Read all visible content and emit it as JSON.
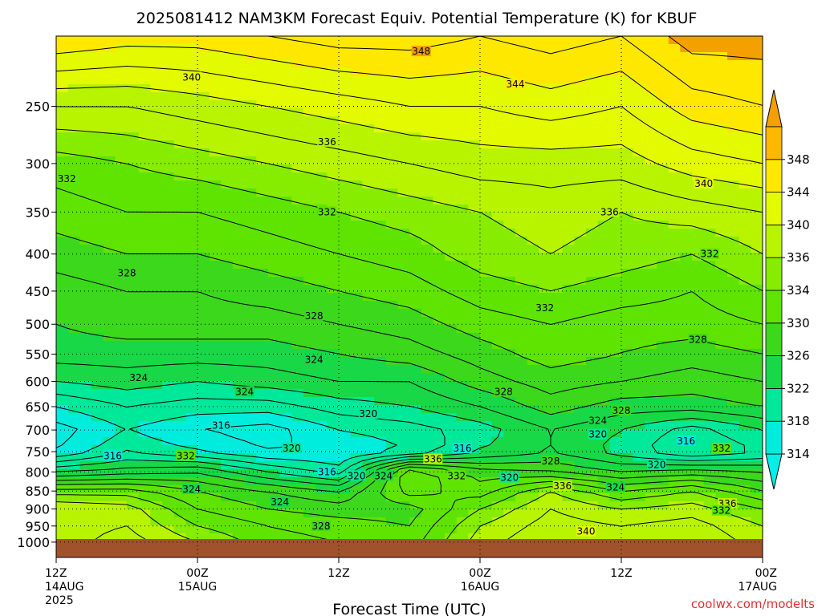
{
  "chart_data": {
    "type": "heatmap",
    "title": "2025081412 NAM3KM Forecast Equiv. Potential Temperature (K) for KBUF",
    "xlabel": "Forecast Time (UTC)",
    "ylabel": "",
    "y_log_scale": true,
    "y_inverted": true,
    "ylim": [
      1050,
      200
    ],
    "xlim_hours": [
      0,
      60
    ],
    "grid": "dotted",
    "y_ticks": [
      250,
      300,
      350,
      400,
      450,
      500,
      550,
      600,
      650,
      700,
      750,
      800,
      850,
      900,
      950,
      1000
    ],
    "x_ticks": [
      {
        "h": 0,
        "hour": "12Z",
        "date": "14AUG",
        "year": "2025"
      },
      {
        "h": 12,
        "hour": "00Z",
        "date": "15AUG",
        "year": ""
      },
      {
        "h": 24,
        "hour": "12Z",
        "date": "",
        "year": ""
      },
      {
        "h": 36,
        "hour": "00Z",
        "date": "16AUG",
        "year": ""
      },
      {
        "h": 48,
        "hour": "12Z",
        "date": "",
        "year": ""
      },
      {
        "h": 60,
        "hour": "00Z",
        "date": "17AUG",
        "year": ""
      }
    ],
    "colorbar": {
      "levels": [
        314,
        318,
        322,
        326,
        330,
        334,
        336,
        340,
        344,
        348
      ],
      "colors": [
        "#00ecdc",
        "#00e89a",
        "#18d848",
        "#3cd81c",
        "#5ee400",
        "#86ec00",
        "#b8f400",
        "#e4fa00",
        "#ffe800",
        "#ffb800"
      ],
      "low_color": "#00f0e8",
      "high_color": "#f4a000"
    },
    "profiles": [
      {
        "h": 0,
        "p": [
          1000,
          950,
          900,
          850,
          800,
          750,
          700,
          650,
          600,
          550,
          500,
          450,
          400,
          350,
          300,
          250,
          200
        ],
        "theta_e": [
          337,
          337,
          338,
          333,
          324,
          316,
          315,
          318,
          322,
          325,
          326,
          327,
          329,
          331,
          333,
          338,
          346
        ]
      },
      {
        "h": 6,
        "p": [
          1000,
          950,
          900,
          850,
          800,
          750,
          700,
          650,
          600,
          550,
          500,
          450,
          400,
          350,
          300,
          250,
          200
        ],
        "theta_e": [
          339,
          338,
          337,
          333,
          325,
          320,
          318,
          320,
          323,
          325,
          327,
          328,
          330,
          332,
          334,
          338,
          345
        ]
      },
      {
        "h": 12,
        "p": [
          1000,
          950,
          900,
          850,
          800,
          750,
          700,
          650,
          600,
          550,
          500,
          450,
          400,
          350,
          300,
          250,
          200
        ],
        "theta_e": [
          336,
          334,
          332,
          330,
          326,
          318,
          316,
          319,
          322,
          325,
          327,
          328,
          330,
          332,
          335,
          339,
          345
        ]
      },
      {
        "h": 18,
        "p": [
          1000,
          950,
          900,
          850,
          800,
          750,
          700,
          650,
          600,
          550,
          500,
          450,
          400,
          350,
          300,
          250,
          200
        ],
        "theta_e": [
          333,
          332,
          330,
          328,
          322,
          316,
          315,
          319,
          323,
          325,
          327,
          329,
          331,
          333,
          336,
          340,
          346
        ]
      },
      {
        "h": 24,
        "p": [
          1000,
          950,
          900,
          850,
          800,
          750,
          700,
          650,
          600,
          550,
          500,
          450,
          400,
          350,
          300,
          250,
          200
        ],
        "theta_e": [
          332,
          331,
          329,
          326,
          319,
          316,
          318,
          321,
          324,
          326,
          328,
          330,
          332,
          334,
          337,
          341,
          347
        ]
      },
      {
        "h": 30,
        "p": [
          1000,
          950,
          900,
          850,
          800,
          750,
          700,
          650,
          600,
          550,
          500,
          450,
          400,
          350,
          300,
          250,
          200
        ],
        "theta_e": [
          331,
          330,
          329,
          333,
          334,
          318,
          319,
          322,
          324,
          327,
          329,
          331,
          333,
          335,
          338,
          342,
          347
        ]
      },
      {
        "h": 36,
        "p": [
          1000,
          950,
          900,
          850,
          800,
          750,
          700,
          650,
          600,
          550,
          500,
          450,
          400,
          350,
          300,
          250,
          200
        ],
        "theta_e": [
          337,
          336,
          334,
          331,
          329,
          322,
          321,
          324,
          327,
          329,
          331,
          333,
          335,
          336,
          339,
          342,
          346
        ]
      },
      {
        "h": 42,
        "p": [
          1000,
          950,
          900,
          850,
          800,
          750,
          700,
          650,
          600,
          550,
          500,
          450,
          400,
          350,
          300,
          250,
          200
        ],
        "theta_e": [
          340,
          339,
          338,
          336,
          328,
          324,
          324,
          327,
          329,
          331,
          332,
          334,
          336,
          337,
          339,
          343,
          347
        ]
      },
      {
        "h": 48,
        "p": [
          1000,
          950,
          900,
          850,
          800,
          750,
          700,
          650,
          600,
          550,
          500,
          450,
          400,
          350,
          300,
          250,
          200
        ],
        "theta_e": [
          339,
          338,
          336,
          332,
          326,
          321,
          322,
          325,
          328,
          330,
          331,
          333,
          335,
          336,
          339,
          342,
          346
        ]
      },
      {
        "h": 54,
        "p": [
          1000,
          950,
          900,
          850,
          800,
          750,
          700,
          650,
          600,
          550,
          500,
          450,
          400,
          350,
          300,
          250,
          200
        ],
        "theta_e": [
          340,
          339,
          337,
          334,
          327,
          318,
          319,
          325,
          327,
          329,
          331,
          332,
          334,
          337,
          341,
          345,
          349
        ]
      },
      {
        "h": 60,
        "p": [
          1000,
          950,
          900,
          850,
          800,
          750,
          700,
          650,
          600,
          550,
          500,
          450,
          400,
          350,
          300,
          250,
          200
        ],
        "theta_e": [
          337,
          336,
          334,
          330,
          326,
          320,
          322,
          326,
          328,
          330,
          332,
          334,
          336,
          338,
          342,
          346,
          349
        ]
      }
    ],
    "contour_labels": [
      {
        "h": 31.0,
        "p": 210,
        "text": "348"
      },
      {
        "h": 11.5,
        "p": 228,
        "text": "340"
      },
      {
        "h": 39.0,
        "p": 233,
        "text": "344"
      },
      {
        "h": 23.0,
        "p": 280,
        "text": "336"
      },
      {
        "h": 0.9,
        "p": 315,
        "text": "332"
      },
      {
        "h": 55.0,
        "p": 320,
        "text": "340"
      },
      {
        "h": 23.0,
        "p": 350,
        "text": "332"
      },
      {
        "h": 47.0,
        "p": 350,
        "text": "336"
      },
      {
        "h": 55.5,
        "p": 400,
        "text": "332"
      },
      {
        "h": 6.0,
        "p": 425,
        "text": "328"
      },
      {
        "h": 21.9,
        "p": 487,
        "text": "328"
      },
      {
        "h": 41.5,
        "p": 475,
        "text": "332"
      },
      {
        "h": 54.5,
        "p": 525,
        "text": "328"
      },
      {
        "h": 21.9,
        "p": 560,
        "text": "324"
      },
      {
        "h": 7.0,
        "p": 593,
        "text": "324"
      },
      {
        "h": 16.0,
        "p": 620,
        "text": "324"
      },
      {
        "h": 38.0,
        "p": 620,
        "text": "328"
      },
      {
        "h": 48.0,
        "p": 658,
        "text": "328"
      },
      {
        "h": 26.5,
        "p": 665,
        "text": "320"
      },
      {
        "h": 46.0,
        "p": 680,
        "text": "324"
      },
      {
        "h": 14.0,
        "p": 690,
        "text": "316"
      },
      {
        "h": 46.0,
        "p": 710,
        "text": "320"
      },
      {
        "h": 53.5,
        "p": 725,
        "text": "316"
      },
      {
        "h": 20.0,
        "p": 742,
        "text": "320"
      },
      {
        "h": 34.5,
        "p": 742,
        "text": "316"
      },
      {
        "h": 56.5,
        "p": 742,
        "text": "332"
      },
      {
        "h": 4.8,
        "p": 760,
        "text": "316"
      },
      {
        "h": 11.0,
        "p": 760,
        "text": "332"
      },
      {
        "h": 32.0,
        "p": 768,
        "text": "336"
      },
      {
        "h": 42.0,
        "p": 773,
        "text": "328"
      },
      {
        "h": 51.0,
        "p": 782,
        "text": "320"
      },
      {
        "h": 23.0,
        "p": 800,
        "text": "316"
      },
      {
        "h": 25.5,
        "p": 810,
        "text": "320"
      },
      {
        "h": 27.8,
        "p": 810,
        "text": "324"
      },
      {
        "h": 34.0,
        "p": 810,
        "text": "332"
      },
      {
        "h": 38.5,
        "p": 815,
        "text": "320"
      },
      {
        "h": 43.0,
        "p": 837,
        "text": "336"
      },
      {
        "h": 47.5,
        "p": 840,
        "text": "324"
      },
      {
        "h": 11.5,
        "p": 845,
        "text": "324"
      },
      {
        "h": 19.0,
        "p": 880,
        "text": "324"
      },
      {
        "h": 57.0,
        "p": 885,
        "text": "336"
      },
      {
        "h": 56.5,
        "p": 905,
        "text": "332"
      },
      {
        "h": 22.5,
        "p": 950,
        "text": "328"
      },
      {
        "h": 45.0,
        "p": 967,
        "text": "340"
      }
    ]
  },
  "credit": "coolwx.com/modelts"
}
